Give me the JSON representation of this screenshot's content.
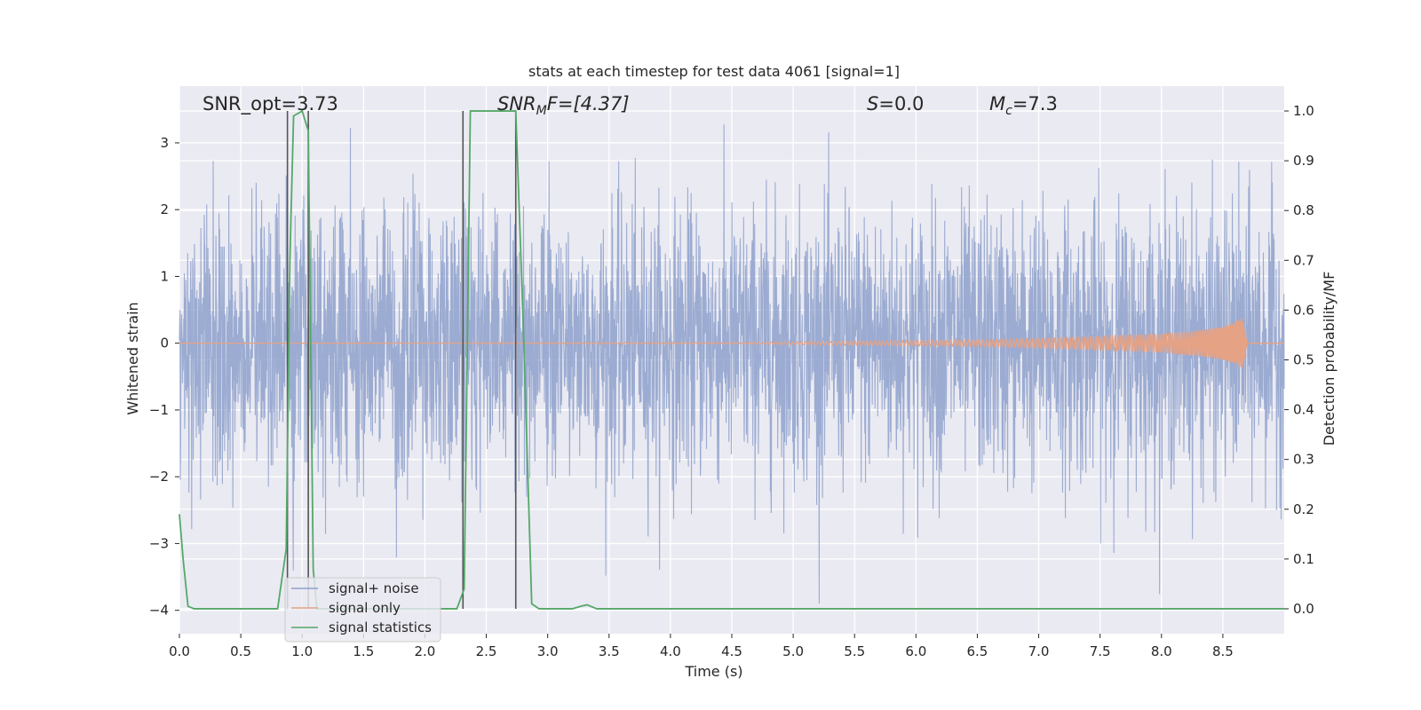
{
  "chart_data": {
    "type": "line",
    "title": "stats at each timestep for test data 4061 [signal=1]",
    "xlabel": "Time (s)",
    "ylabel": "Whitened strain",
    "ylabel_right": "Detection probability/MF",
    "xlim": [
      0.0,
      9.0
    ],
    "ylim": [
      -4.35,
      3.85
    ],
    "ylim_right": [
      -0.05,
      1.05
    ],
    "grid": true,
    "legend_placement": "lower-left",
    "x_ticks": [
      "0.0",
      "0.5",
      "1.0",
      "1.5",
      "2.0",
      "2.5",
      "3.0",
      "3.5",
      "4.0",
      "4.5",
      "5.0",
      "5.5",
      "6.0",
      "6.5",
      "7.0",
      "7.5",
      "8.0",
      "8.5"
    ],
    "y_ticks": [
      "3",
      "2",
      "1",
      "0",
      "−1",
      "−2",
      "−3",
      "−4"
    ],
    "y_ticks_right": [
      "1.0",
      "0.9",
      "0.8",
      "0.7",
      "0.6",
      "0.5",
      "0.4",
      "0.3",
      "0.2",
      "0.1",
      "0.0"
    ],
    "annotations": {
      "snr_opt": "SNR_opt=3.73",
      "snr_mf_base": "SNR",
      "snr_mf_sub": "M",
      "snr_mf_rest": "F=[4.37]",
      "s_base": "S",
      "s_rest": "=0.0",
      "mc_base": "M",
      "mc_sub": "c",
      "mc_rest": "=7.3"
    },
    "detection_markers_x": [
      0.88,
      1.05,
      2.31,
      2.74
    ],
    "series": [
      {
        "name": "signal+ noise",
        "color": "#8da0cb",
        "description_axis": "left",
        "x_range": [
          0.0,
          9.0
        ],
        "typical_amplitude": 1.0,
        "peak_values": [
          3.5,
          -3.9,
          3.45,
          3.5
        ]
      },
      {
        "name": "signal only",
        "color": "#e5a285",
        "description_axis": "left",
        "x_range": [
          0.0,
          8.7
        ],
        "envelope_x": [
          0.0,
          4.5,
          5.5,
          6.5,
          7.0,
          7.5,
          8.0,
          8.3,
          8.5,
          8.6,
          8.66,
          8.7
        ],
        "envelope_y": [
          0.0,
          0.01,
          0.03,
          0.05,
          0.07,
          0.1,
          0.14,
          0.19,
          0.25,
          0.32,
          0.4,
          0.0
        ]
      },
      {
        "name": "signal statistics",
        "color": "#55a868",
        "description_axis": "right",
        "x": [
          0.0,
          0.03,
          0.07,
          0.12,
          0.2,
          0.5,
          0.8,
          0.87,
          0.9,
          0.93,
          1.0,
          1.05,
          1.09,
          1.12,
          1.2,
          1.5,
          2.0,
          2.26,
          2.32,
          2.37,
          2.5,
          2.74,
          2.8,
          2.87,
          2.93,
          3.05,
          3.2,
          3.27,
          3.32,
          3.4,
          4.0,
          5.0,
          6.0,
          7.0,
          8.0,
          9.0
        ],
        "values": [
          0.19,
          0.1,
          0.005,
          0.0,
          0.0,
          0.0,
          0.0,
          0.12,
          0.7,
          0.99,
          1.0,
          0.96,
          0.08,
          0.0,
          0.0,
          0.0,
          0.0,
          0.0,
          0.04,
          1.0,
          1.0,
          1.0,
          0.58,
          0.01,
          0.0,
          0.0,
          0.0,
          0.005,
          0.008,
          0.0,
          0.0,
          0.0,
          0.0,
          0.0,
          0.0,
          0.0
        ]
      }
    ]
  }
}
